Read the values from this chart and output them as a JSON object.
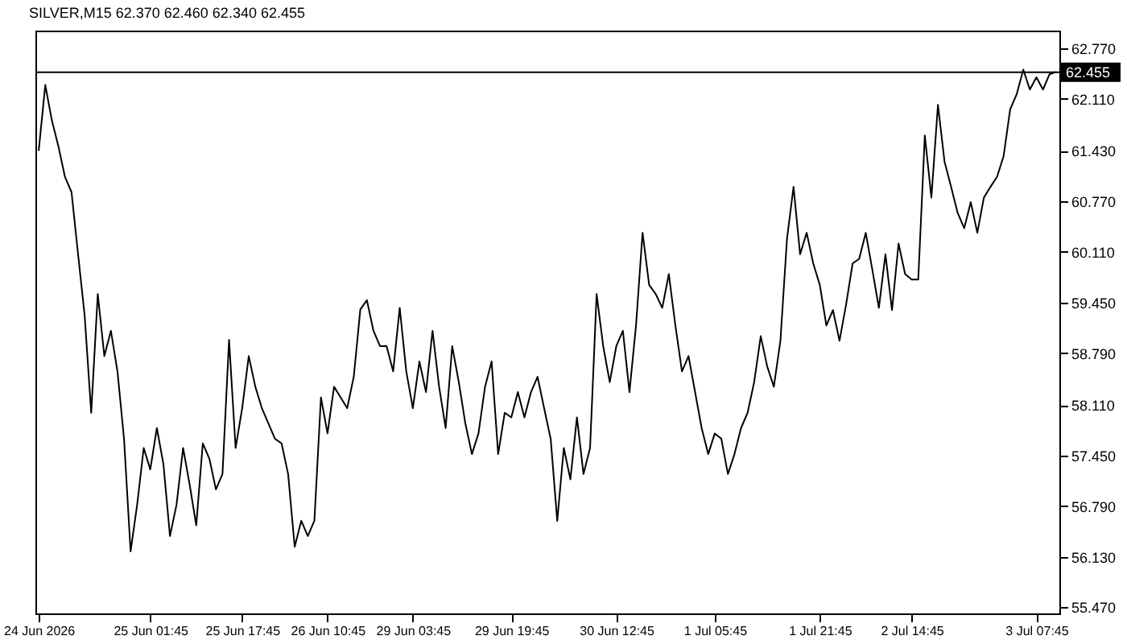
{
  "chart_data": {
    "type": "line",
    "title": "SILVER,M15  62.370 62.460 62.340 62.455",
    "color": "#000000",
    "categories": [
      "24 Jun 2026",
      null,
      null,
      null,
      null,
      null,
      null,
      null,
      null,
      null,
      null,
      null,
      null,
      null,
      null,
      null,
      null,
      "25 Jun 01:45",
      null,
      null,
      null,
      null,
      null,
      null,
      null,
      null,
      null,
      null,
      null,
      null,
      null,
      "25 Jun 17:45",
      null,
      null,
      null,
      null,
      null,
      null,
      null,
      null,
      null,
      null,
      null,
      null,
      "26 Jun 10:45",
      null,
      null,
      null,
      null,
      null,
      null,
      null,
      null,
      null,
      null,
      null,
      null,
      "29 Jun 03:45",
      null,
      null,
      null,
      null,
      null,
      null,
      null,
      null,
      null,
      null,
      null,
      null,
      null,
      null,
      "29 Jun 19:45",
      null,
      null,
      null,
      null,
      null,
      null,
      null,
      null,
      null,
      null,
      null,
      null,
      null,
      null,
      null,
      "30 Jun 12:45",
      null,
      null,
      null,
      null,
      null,
      null,
      null,
      null,
      null,
      null,
      null,
      null,
      null,
      null,
      "1 Jul 05:45",
      null,
      null,
      null,
      null,
      null,
      null,
      null,
      null,
      null,
      null,
      null,
      null,
      null,
      null,
      null,
      "1 Jul 21:45",
      null,
      null,
      null,
      null,
      null,
      null,
      null,
      null,
      null,
      null,
      null,
      null,
      null,
      "2 Jul 14:45",
      null,
      null,
      null,
      null,
      null,
      null,
      null,
      null,
      null,
      null,
      null,
      null,
      null,
      null,
      null,
      null,
      null,
      null,
      "3 Jul 07:45",
      null,
      null,
      null
    ],
    "values": [
      61.43,
      62.29,
      61.83,
      61.49,
      61.09,
      60.89,
      60.08,
      59.28,
      58.01,
      59.56,
      58.75,
      59.08,
      58.55,
      57.67,
      56.2,
      56.81,
      57.55,
      57.27,
      57.81,
      57.34,
      56.4,
      56.81,
      57.55,
      57.07,
      56.54,
      57.61,
      57.41,
      57.01,
      57.21,
      58.96,
      57.55,
      58.07,
      58.75,
      58.35,
      58.07,
      57.87,
      57.67,
      57.61,
      57.21,
      56.26,
      56.6,
      56.4,
      56.6,
      58.21,
      57.74,
      58.35,
      58.21,
      58.07,
      58.48,
      59.36,
      59.48,
      59.08,
      58.88,
      58.88,
      58.55,
      59.38,
      58.55,
      58.07,
      58.68,
      58.28,
      59.08,
      58.35,
      57.81,
      58.88,
      58.41,
      57.87,
      57.47,
      57.74,
      58.35,
      58.68,
      57.47,
      58.01,
      57.95,
      58.28,
      57.95,
      58.28,
      58.48,
      58.07,
      57.67,
      56.6,
      57.55,
      57.14,
      57.95,
      57.21,
      57.55,
      59.56,
      58.88,
      58.41,
      58.88,
      59.08,
      58.28,
      59.15,
      60.36,
      59.68,
      59.56,
      59.38,
      59.82,
      59.15,
      58.55,
      58.75,
      58.28,
      57.81,
      57.47,
      57.74,
      57.67,
      57.21,
      57.47,
      57.81,
      58.01,
      58.41,
      59.01,
      58.61,
      58.35,
      58.95,
      60.28,
      60.96,
      60.08,
      60.36,
      59.96,
      59.68,
      59.15,
      59.35,
      58.95,
      59.42,
      59.96,
      60.02,
      60.36,
      59.88,
      59.38,
      60.08,
      59.35,
      60.22,
      59.82,
      59.75,
      59.75,
      61.63,
      60.82,
      62.03,
      61.29,
      60.96,
      60.62,
      60.42,
      60.76,
      60.36,
      60.82,
      60.96,
      61.09,
      61.36,
      61.97,
      62.17,
      62.49,
      62.23,
      62.39,
      62.23,
      62.43,
      62.46
    ],
    "ylim": [
      55.39,
      63.0
    ],
    "yticks": [
      {
        "value": 55.47,
        "label": "55.470"
      },
      {
        "value": 56.13,
        "label": "56.130"
      },
      {
        "value": 56.79,
        "label": "56.790"
      },
      {
        "value": 57.45,
        "label": "57.450"
      },
      {
        "value": 58.11,
        "label": "58.110"
      },
      {
        "value": 58.79,
        "label": "58.790"
      },
      {
        "value": 59.45,
        "label": "59.450"
      },
      {
        "value": 60.11,
        "label": "60.110"
      },
      {
        "value": 60.77,
        "label": "60.770"
      },
      {
        "value": 61.43,
        "label": "61.430"
      },
      {
        "value": 62.11,
        "label": "62.110"
      },
      {
        "value": 62.77,
        "label": "62.770"
      }
    ],
    "ref_lines": [
      {
        "axis": "y",
        "value": 62.455,
        "label": "62.455",
        "color": "#000000"
      }
    ]
  }
}
